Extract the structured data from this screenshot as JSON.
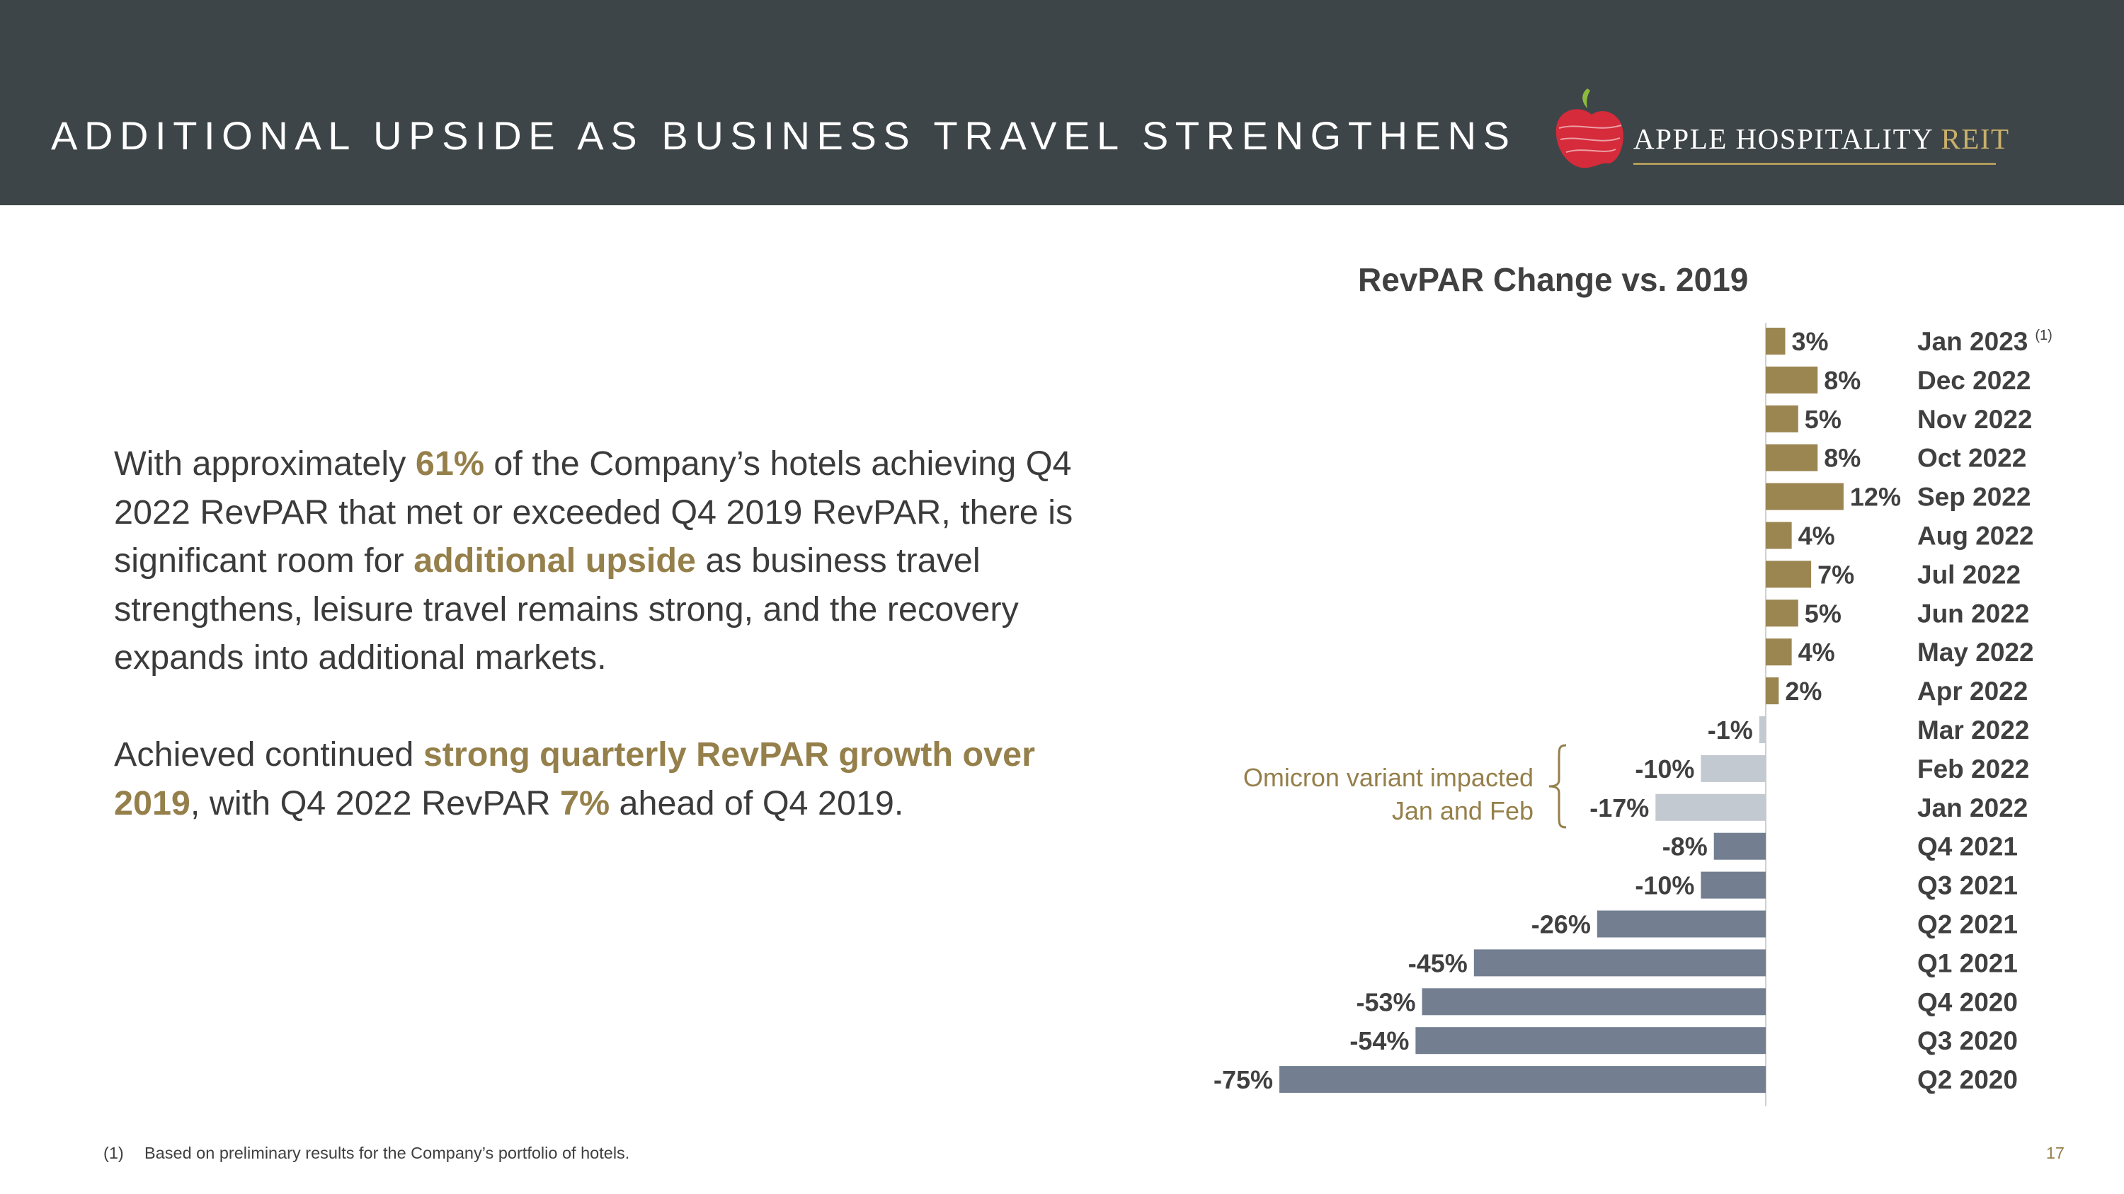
{
  "header": {
    "title": "ADDITIONAL UPSIDE AS BUSINESS TRAVEL STRENGTHENS",
    "logo_name": "APPLE HOSPITALITY",
    "logo_suffix": "REIT"
  },
  "body": {
    "para1": {
      "t1": "With approximately ",
      "h1": "61%",
      "t2": " of the Company’s hotels achieving Q4 2022 RevPAR that met or exceeded Q4 2019 RevPAR, there is significant room for ",
      "h2": "additional upside",
      "t3": " as business travel strengthens, leisure travel remains strong, and the recovery expands into additional markets."
    },
    "para2": {
      "t1": "Achieved continued ",
      "h1": "strong quarterly RevPAR growth over 2019",
      "t2": ", with Q4 2022 RevPAR ",
      "h2": "7%",
      "t3": " ahead of Q4 2019."
    }
  },
  "annotation": {
    "line1": "Omicron variant impacted",
    "line2": "Jan and Feb"
  },
  "footnote": {
    "marker": "(1)",
    "text": "Based on preliminary results for the Company’s portfolio of hotels."
  },
  "page_number": "17",
  "colors": {
    "positive": "#9b8652",
    "omicron": "#c3c9d0",
    "pre2022": "#737f91",
    "accent_text": "#95804b"
  },
  "chart_data": {
    "type": "bar",
    "orientation": "horizontal",
    "title": "RevPAR Change vs. 2019",
    "categories": [
      "Jan 2023",
      "Dec 2022",
      "Nov 2022",
      "Oct 2022",
      "Sep 2022",
      "Aug 2022",
      "Jul 2022",
      "Jun 2022",
      "May 2022",
      "Apr 2022",
      "Mar 2022",
      "Feb 2022",
      "Jan 2022",
      "Q4 2021",
      "Q3 2021",
      "Q2 2021",
      "Q1 2021",
      "Q4 2020",
      "Q3 2020",
      "Q2 2020"
    ],
    "values": [
      3,
      8,
      5,
      8,
      12,
      4,
      7,
      5,
      4,
      2,
      -1,
      -10,
      -17,
      -8,
      -10,
      -26,
      -45,
      -53,
      -54,
      -75
    ],
    "value_labels": [
      "3%",
      "8%",
      "5%",
      "8%",
      "12%",
      "4%",
      "7%",
      "5%",
      "4%",
      "2%",
      "-1%",
      "-10%",
      "-17%",
      "-8%",
      "-10%",
      "-26%",
      "-45%",
      "-53%",
      "-54%",
      "-75%"
    ],
    "groups": [
      "positive",
      "positive",
      "positive",
      "positive",
      "positive",
      "positive",
      "positive",
      "positive",
      "positive",
      "positive",
      "omicron",
      "omicron",
      "omicron",
      "pre2022",
      "pre2022",
      "pre2022",
      "pre2022",
      "pre2022",
      "pre2022",
      "pre2022"
    ],
    "superscripts": [
      "(1)",
      "",
      "",
      "",
      "",
      "",
      "",
      "",
      "",
      "",
      "",
      "",
      "",
      "",
      "",
      "",
      "",
      "",
      "",
      ""
    ],
    "unit": "%",
    "xlim": [
      -75,
      12
    ]
  }
}
